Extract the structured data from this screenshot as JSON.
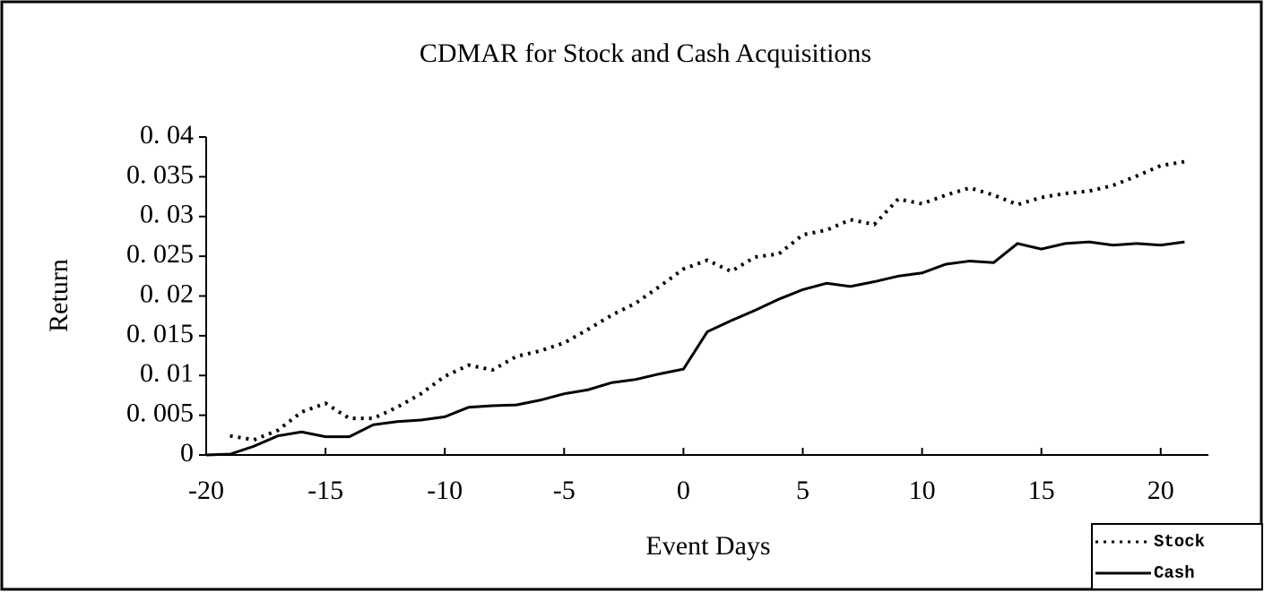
{
  "chart_data": {
    "type": "line",
    "title": "CDMAR for Stock and Cash Acquisitions",
    "x_label": "Event Days",
    "y_label": "Return",
    "x": [
      -20,
      -19,
      -18,
      -17,
      -16,
      -15,
      -14,
      -13,
      -12,
      -11,
      -10,
      -9,
      -8,
      -7,
      -6,
      -5,
      -4,
      -3,
      -2,
      -1,
      0,
      1,
      2,
      3,
      4,
      5,
      6,
      7,
      8,
      9,
      10,
      11,
      12,
      13,
      14,
      15,
      16,
      17,
      18,
      19,
      20,
      21
    ],
    "series": [
      {
        "name": "Stock",
        "color": "#000000",
        "dash": "dotted",
        "values": [
          null,
          0.0024,
          0.0019,
          0.0031,
          0.0054,
          0.0065,
          0.0046,
          0.0046,
          0.006,
          0.0077,
          0.0099,
          0.0113,
          0.0107,
          0.0124,
          0.0131,
          0.0141,
          0.0158,
          0.0176,
          0.0191,
          0.0212,
          0.0234,
          0.0245,
          0.0231,
          0.0249,
          0.0253,
          0.0277,
          0.0283,
          0.0296,
          0.029,
          0.0322,
          0.0316,
          0.0327,
          0.0336,
          0.0327,
          0.0315,
          0.0324,
          0.0329,
          0.0332,
          0.0339,
          0.0351,
          0.0364,
          0.0369
        ]
      },
      {
        "name": "Cash",
        "color": "#000000",
        "dash": "solid",
        "values": [
          0,
          0.0001,
          0.0011,
          0.0024,
          0.0029,
          0.0023,
          0.0023,
          0.0038,
          0.0042,
          0.0044,
          0.0048,
          0.006,
          0.0062,
          0.0063,
          0.0069,
          0.0077,
          0.0082,
          0.0091,
          0.0095,
          0.0102,
          0.0108,
          0.0155,
          0.0169,
          0.0182,
          0.0196,
          0.0208,
          0.0216,
          0.0212,
          0.0218,
          0.0225,
          0.0229,
          0.024,
          0.0244,
          0.0242,
          0.0266,
          0.0259,
          0.0266,
          0.0268,
          0.0264,
          0.0266,
          0.0264,
          0.0268
        ]
      }
    ],
    "xlim": [
      -20,
      22
    ],
    "xticks": [
      -20,
      -15,
      -10,
      -5,
      0,
      5,
      10,
      15,
      20
    ],
    "ylim": [
      0,
      0.04
    ],
    "yticks": [
      0,
      {
        "value": 0.005,
        "label": "0. 005"
      },
      {
        "value": 0.01,
        "label": "0. 01"
      },
      {
        "value": 0.015,
        "label": "0. 015"
      },
      {
        "value": 0.02,
        "label": "0. 02"
      },
      {
        "value": 0.025,
        "label": "0. 025"
      },
      {
        "value": 0.03,
        "label": "0. 03"
      },
      {
        "value": 0.035,
        "label": "0. 035"
      },
      {
        "value": 0.04,
        "label": "0. 04"
      }
    ],
    "legend": "lower right",
    "grid": false
  }
}
